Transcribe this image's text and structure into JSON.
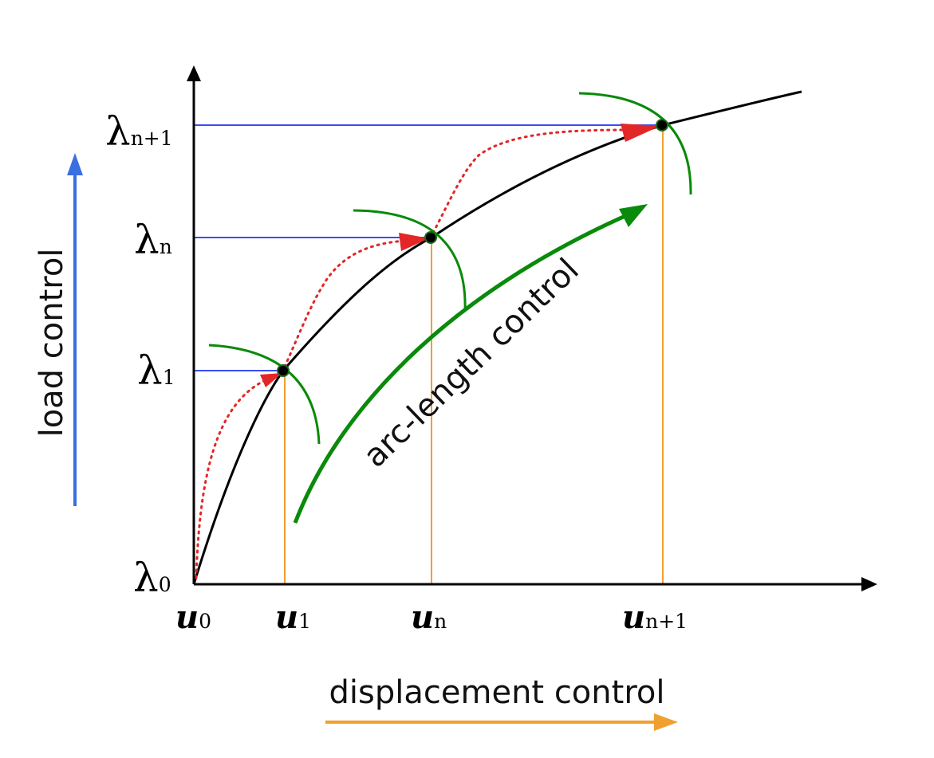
{
  "colors": {
    "axis": "#000000",
    "curve": "#000000",
    "load_level": "#3b4cf5",
    "displacement_level": "#f0a030",
    "arc": "#0a8a0a",
    "iteration": "#e32626",
    "load_arrow": "#3a6fe0",
    "displacement_arrow": "#f0a030",
    "arc_arrow": "#0a8a0a"
  },
  "y_labels": {
    "l0": {
      "main": "λ",
      "sub": "0"
    },
    "l1": {
      "main": "λ",
      "sub": "1"
    },
    "ln": {
      "main": "λ",
      "sub": "n"
    },
    "ln1": {
      "main": "λ",
      "sub": "n+1"
    }
  },
  "x_labels": {
    "u0": {
      "main": "u",
      "sub": "0"
    },
    "u1": {
      "main": "u",
      "sub": "1"
    },
    "un": {
      "main": "u",
      "sub": "n"
    },
    "un1": {
      "main": "u",
      "sub": "n+1"
    }
  },
  "controls": {
    "load": "load control",
    "displacement": "displacement control",
    "arc_length": "arc-length control"
  },
  "icons": {
    "equilibrium_point": "filled-circle",
    "iteration_arrowhead": "triangle-arrowhead"
  }
}
